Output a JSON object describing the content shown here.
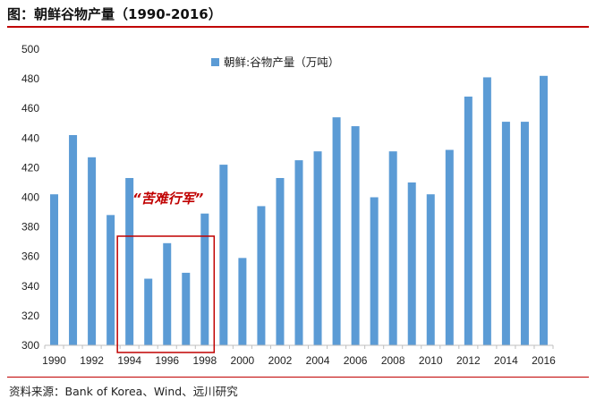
{
  "header": {
    "title": "图：朝鲜谷物产量（1990-2016）"
  },
  "footer": {
    "source": "资料来源：Bank of Korea、Wind、远川研究"
  },
  "colors": {
    "bar": "#5b9bd5",
    "accent": "#c00000",
    "axis": "#bfbfbf"
  },
  "chart_data": {
    "type": "bar",
    "title": "",
    "xlabel": "",
    "ylabel": "",
    "ylim": [
      300,
      500
    ],
    "yticks": [
      300,
      320,
      340,
      360,
      380,
      400,
      420,
      440,
      460,
      480,
      500
    ],
    "x_tick_labels": [
      "1990",
      "1992",
      "1994",
      "1996",
      "1998",
      "2000",
      "2002",
      "2004",
      "2006",
      "2008",
      "2010",
      "2012",
      "2014",
      "2016"
    ],
    "categories": [
      1990,
      1991,
      1992,
      1993,
      1994,
      1995,
      1996,
      1997,
      1998,
      1999,
      2000,
      2001,
      2002,
      2003,
      2004,
      2005,
      2006,
      2007,
      2008,
      2009,
      2010,
      2011,
      2012,
      2013,
      2014,
      2015,
      2016
    ],
    "series": [
      {
        "name": "朝鲜:谷物产量（万吨）",
        "values": [
          402,
          442,
          427,
          388,
          413,
          345,
          369,
          349,
          389,
          422,
          359,
          394,
          413,
          425,
          431,
          454,
          448,
          400,
          431,
          410,
          402,
          432,
          468,
          481,
          451,
          451,
          482
        ]
      }
    ],
    "legend": "top-center",
    "grid": false,
    "annotation": {
      "text": "“苦难行军”",
      "years": [
        1994,
        1998
      ]
    }
  }
}
